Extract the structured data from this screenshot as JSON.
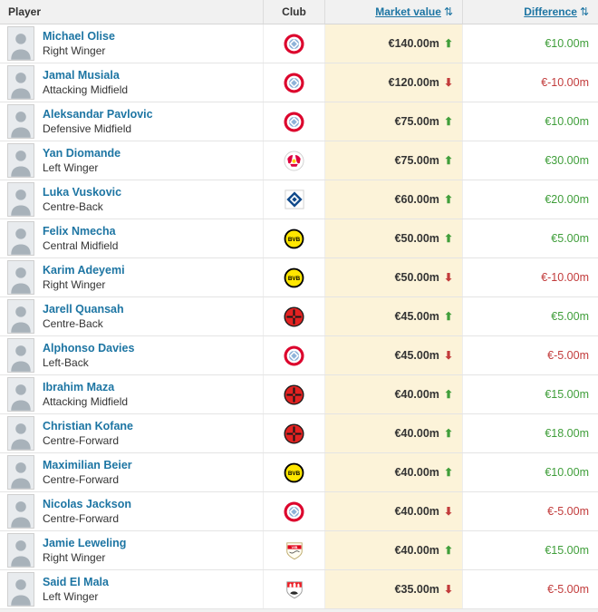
{
  "header": {
    "player": "Player",
    "club": "Club",
    "market_value": "Market value",
    "difference": "Difference",
    "sort_icon": "⇅"
  },
  "icons": {
    "trend_up": "⬆",
    "trend_down": "⬇"
  },
  "colors": {
    "link": "#1d75a3",
    "positive": "#3f9e3a",
    "negative": "#c23b3b",
    "market_value_bg": "#fcf3d9",
    "header_bg": "#f1f1f1"
  },
  "rows": [
    {
      "name": "Michael Olise",
      "position": "Right Winger",
      "club": "bayern-munich",
      "club_icon": "bayern-munich-logo",
      "market_value": "€140.00m",
      "trend": "up",
      "difference": "€10.00m",
      "difference_sign": "pos"
    },
    {
      "name": "Jamal Musiala",
      "position": "Attacking Midfield",
      "club": "bayern-munich",
      "club_icon": "bayern-munich-logo",
      "market_value": "€120.00m",
      "trend": "down",
      "difference": "€-10.00m",
      "difference_sign": "neg"
    },
    {
      "name": "Aleksandar Pavlovic",
      "position": "Defensive Midfield",
      "club": "bayern-munich",
      "club_icon": "bayern-munich-logo",
      "market_value": "€75.00m",
      "trend": "up",
      "difference": "€10.00m",
      "difference_sign": "pos"
    },
    {
      "name": "Yan Diomande",
      "position": "Left Winger",
      "club": "rb-leipzig",
      "club_icon": "rb-leipzig-logo",
      "market_value": "€75.00m",
      "trend": "up",
      "difference": "€30.00m",
      "difference_sign": "pos"
    },
    {
      "name": "Luka Vuskovic",
      "position": "Centre-Back",
      "club": "hamburger-sv",
      "club_icon": "hamburger-sv-logo",
      "market_value": "€60.00m",
      "trend": "up",
      "difference": "€20.00m",
      "difference_sign": "pos"
    },
    {
      "name": "Felix Nmecha",
      "position": "Central Midfield",
      "club": "borussia-dortmund",
      "club_icon": "borussia-dortmund-logo",
      "market_value": "€50.00m",
      "trend": "up",
      "difference": "€5.00m",
      "difference_sign": "pos"
    },
    {
      "name": "Karim Adeyemi",
      "position": "Right Winger",
      "club": "borussia-dortmund",
      "club_icon": "borussia-dortmund-logo",
      "market_value": "€50.00m",
      "trend": "down",
      "difference": "€-10.00m",
      "difference_sign": "neg"
    },
    {
      "name": "Jarell Quansah",
      "position": "Centre-Back",
      "club": "bayer-leverkusen",
      "club_icon": "bayer-leverkusen-logo",
      "market_value": "€45.00m",
      "trend": "up",
      "difference": "€5.00m",
      "difference_sign": "pos"
    },
    {
      "name": "Alphonso Davies",
      "position": "Left-Back",
      "club": "bayern-munich",
      "club_icon": "bayern-munich-logo",
      "market_value": "€45.00m",
      "trend": "down",
      "difference": "€-5.00m",
      "difference_sign": "neg"
    },
    {
      "name": "Ibrahim Maza",
      "position": "Attacking Midfield",
      "club": "bayer-leverkusen",
      "club_icon": "bayer-leverkusen-logo",
      "market_value": "€40.00m",
      "trend": "up",
      "difference": "€15.00m",
      "difference_sign": "pos"
    },
    {
      "name": "Christian Kofane",
      "position": "Centre-Forward",
      "club": "bayer-leverkusen",
      "club_icon": "bayer-leverkusen-logo",
      "market_value": "€40.00m",
      "trend": "up",
      "difference": "€18.00m",
      "difference_sign": "pos"
    },
    {
      "name": "Maximilian Beier",
      "position": "Centre-Forward",
      "club": "borussia-dortmund",
      "club_icon": "borussia-dortmund-logo",
      "market_value": "€40.00m",
      "trend": "up",
      "difference": "€10.00m",
      "difference_sign": "pos"
    },
    {
      "name": "Nicolas Jackson",
      "position": "Centre-Forward",
      "club": "bayern-munich",
      "club_icon": "bayern-munich-logo",
      "market_value": "€40.00m",
      "trend": "down",
      "difference": "€-5.00m",
      "difference_sign": "neg"
    },
    {
      "name": "Jamie Leweling",
      "position": "Right Winger",
      "club": "vfb-stuttgart",
      "club_icon": "vfb-stuttgart-logo",
      "market_value": "€40.00m",
      "trend": "up",
      "difference": "€15.00m",
      "difference_sign": "pos"
    },
    {
      "name": "Said El Mala",
      "position": "Left Winger",
      "club": "fc-koeln",
      "club_icon": "fc-koeln-logo",
      "market_value": "€35.00m",
      "trend": "down",
      "difference": "€-5.00m",
      "difference_sign": "neg"
    }
  ]
}
